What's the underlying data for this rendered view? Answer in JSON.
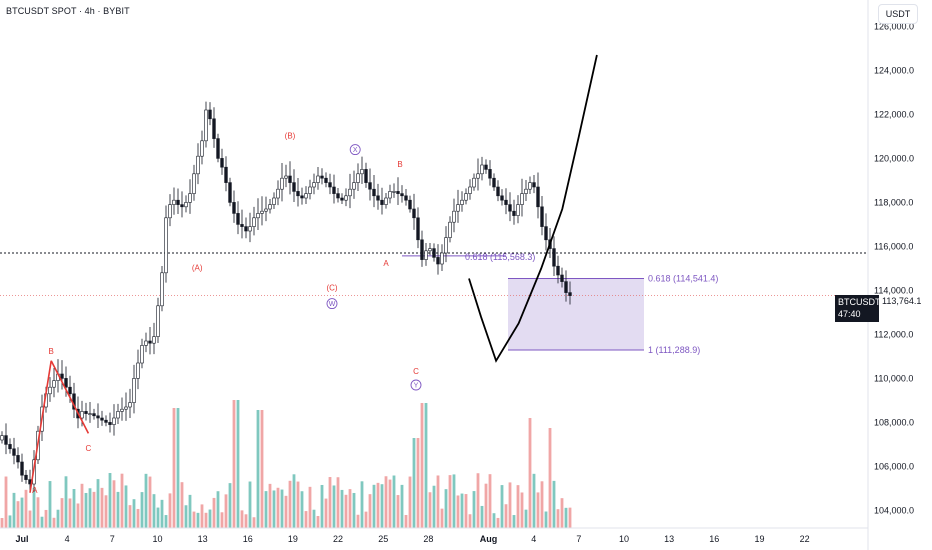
{
  "header": {
    "symbol_line": "BTCUSDT SPOT · 4h · BYBIT"
  },
  "currency_button": "USDT",
  "last_price": {
    "symbol": "BTCUSDT",
    "value": "113,764.1",
    "countdown": "47:40"
  },
  "colors": {
    "up": "#26a69a",
    "down": "#131722",
    "volume_up": "#7fc8bf",
    "volume_down": "#f0a6a6",
    "wave_label": "#e53935",
    "wxy_label": "#7e57c2",
    "fib_box": "#d1c4e9",
    "fib_line": "#7e57c2",
    "projection": "#000000"
  },
  "chart_data": {
    "type": "candlestick",
    "title": "",
    "y_axis": {
      "ticks": [
        "126,000.0",
        "124,000.0",
        "122,000.0",
        "120,000.0",
        "118,000.0",
        "116,000.0",
        "114,000.0",
        "112,000.0",
        "110,000.0",
        "108,000.0",
        "106,000.0",
        "104,000.0"
      ],
      "tick_values": [
        126000,
        124000,
        122000,
        120000,
        118000,
        116000,
        114000,
        112000,
        110000,
        108000,
        106000,
        104000
      ],
      "range": [
        103200,
        127200
      ]
    },
    "x_axis": {
      "ticks": [
        "Jul",
        "4",
        "7",
        "10",
        "13",
        "16",
        "19",
        "22",
        "25",
        "28",
        "Aug",
        "4",
        "7",
        "10",
        "13",
        "16",
        "19",
        "22"
      ],
      "tick_days": [
        0,
        3,
        6,
        9,
        12,
        15,
        18,
        21,
        24,
        27,
        31,
        34,
        37,
        40,
        43,
        46,
        49,
        52
      ],
      "start_date": "2025-07-01",
      "range_days": [
        0,
        54
      ]
    },
    "closes": [
      107400,
      107000,
      106800,
      106500,
      106200,
      105600,
      105400,
      105200,
      106300,
      107600,
      108700,
      109300,
      109600,
      109900,
      110200,
      110000,
      109600,
      109300,
      108600,
      108200,
      108500,
      108400,
      108400,
      108300,
      108200,
      108100,
      108000,
      107900,
      108200,
      108500,
      108600,
      108700,
      108900,
      110000,
      110700,
      111500,
      111700,
      111600,
      111900,
      113300,
      114800,
      117300,
      117900,
      118100,
      117900,
      117800,
      118000,
      118400,
      119300,
      120100,
      120800,
      122200,
      121800,
      120900,
      120000,
      119600,
      118900,
      118000,
      117500,
      117000,
      116900,
      116700,
      116900,
      117300,
      117500,
      117600,
      117700,
      117900,
      118200,
      118600,
      119100,
      119200,
      118900,
      118500,
      118300,
      118200,
      118400,
      118700,
      118900,
      119200,
      119100,
      118900,
      118700,
      118400,
      118200,
      118100,
      118300,
      118600,
      118900,
      119300,
      119500,
      118900,
      118600,
      118300,
      118100,
      117900,
      118200,
      118500,
      118500,
      118400,
      118300,
      118100,
      117700,
      117300,
      116300,
      115400,
      115800,
      115900,
      115500,
      115200,
      115700,
      116400,
      117100,
      117600,
      117900,
      118100,
      118400,
      118700,
      119100,
      119300,
      119700,
      119500,
      119100,
      118700,
      118300,
      118100,
      117900,
      117600,
      117400,
      117900,
      118400,
      118600,
      118900,
      118700,
      117800,
      116900,
      116300,
      115900,
      115100,
      114700,
      114400,
      113900,
      113764
    ],
    "bar_index_range": [
      0,
      142
    ],
    "days_per_bar": 0.19444,
    "volume_up_bars": [
      2,
      3,
      5,
      8,
      10,
      12,
      14,
      16,
      18,
      21,
      22,
      24,
      27,
      29,
      31,
      33,
      35,
      36,
      38,
      39,
      40,
      41,
      44,
      46,
      47,
      49,
      52,
      54,
      57,
      59,
      62,
      64,
      66,
      68,
      70,
      73,
      75,
      78,
      80,
      83,
      85,
      88,
      90,
      93,
      95,
      98,
      100,
      103,
      106,
      108,
      111,
      113,
      115,
      118,
      120,
      123,
      125,
      128,
      131,
      133,
      136,
      138,
      141
    ],
    "horizontal_levels": [
      {
        "name": "dotted-level",
        "price": 115700
      },
      {
        "name": "current-price-line",
        "price": 113764.1
      }
    ],
    "fib_levels": [
      {
        "label": "0.618 (114,541.4)",
        "price": 114541.4
      },
      {
        "label": "1 (111,288.9)",
        "price": 111288.9
      },
      {
        "label": "0.618 (115,568.3)",
        "price": 115568.3
      }
    ],
    "wave_labels": [
      {
        "text": "A",
        "day": 8.2,
        "price": 104800,
        "color": "red"
      },
      {
        "text": "B",
        "day": 12.3,
        "price": 111100,
        "color": "red"
      },
      {
        "text": "C",
        "day": 21.6,
        "price": 106700,
        "color": "red"
      },
      {
        "text": "(A)",
        "day": 48.8,
        "price": 114900,
        "color": "red"
      },
      {
        "text": "(B)",
        "day": 72.0,
        "price": 120900,
        "color": "red"
      },
      {
        "text": "(C)",
        "day": 82.5,
        "price": 114000,
        "color": "red"
      },
      {
        "text": "A",
        "day": 96.0,
        "price": 115100,
        "color": "red"
      },
      {
        "text": "B",
        "day": 99.5,
        "price": 119600,
        "color": "red"
      },
      {
        "text": "C",
        "day": 103.5,
        "price": 110200,
        "color": "red"
      }
    ],
    "circle_labels": [
      {
        "text": "W",
        "day": 82.5,
        "price": 113400
      },
      {
        "text": "X",
        "day": 88.3,
        "price": 120400
      },
      {
        "text": "Y",
        "day": 103.5,
        "price": 109700
      }
    ],
    "projection_path": [
      {
        "day": 29.7,
        "price": 114541
      },
      {
        "day": 30.5,
        "price": 112800
      },
      {
        "day": 31.5,
        "price": 110800
      },
      {
        "day": 33.0,
        "price": 112500
      },
      {
        "day": 34.5,
        "price": 115000
      },
      {
        "day": 35.9,
        "price": 117700
      },
      {
        "day": 37.0,
        "price": 121000
      },
      {
        "day": 38.2,
        "price": 124700
      }
    ],
    "abc_red_lines": [
      {
        "from_day": 7.0,
        "from_price": 104800,
        "to_day": 12.3,
        "to_price": 110800
      },
      {
        "from_day": 12.3,
        "from_price": 110800,
        "to_day": 21.6,
        "to_price": 107500
      }
    ]
  }
}
